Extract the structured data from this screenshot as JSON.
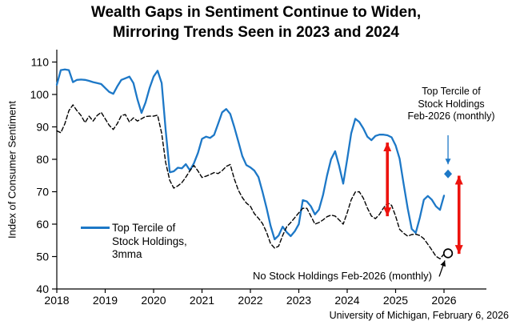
{
  "title": {
    "line1": "Wealth Gaps in Sentiment Continue to Widen,",
    "line2": "Mirroring Trends Seen in 2023 and 2024"
  },
  "y_axis": {
    "label": "Index of Consumer Sentiment",
    "ticks": [
      40,
      50,
      60,
      70,
      80,
      90,
      100,
      110
    ],
    "min": 40,
    "max": 110
  },
  "x_axis": {
    "ticks": [
      2018,
      2019,
      2020,
      2021,
      2022,
      2023,
      2024,
      2025,
      2026
    ]
  },
  "legend": {
    "lines": [
      "Top Tercile of",
      "Stock Holdings,",
      "3mma"
    ]
  },
  "annotations": {
    "top": {
      "lines": [
        "Top Tercile of",
        "Stock Holdings",
        "Feb-2026 (monthly)"
      ]
    },
    "bottom": {
      "text": "No Stock Holdings Feb-2026 (monthly)"
    }
  },
  "source": "University of Michigan, February 6, 2026",
  "colors": {
    "blue": "#1d78c7",
    "red": "#ed130e",
    "black": "#000000"
  },
  "chart_data": {
    "type": "line",
    "title": "Wealth Gaps in Sentiment Continue to Widen, Mirroring Trends Seen in 2023 and 2024",
    "ylabel": "Index of Consumer Sentiment",
    "ylim": [
      40,
      110
    ],
    "x_range_years": [
      2018,
      2026.9
    ],
    "frequency": "monthly",
    "x_monthly_start": "2018-01",
    "x_monthly_end": "2026-01",
    "grid": false,
    "series": [
      {
        "name": "Top Tercile of Stock Holdings, 3mma",
        "style": "solid",
        "color": "#1d78c7",
        "values": [
          103,
          107.5,
          107.7,
          107.5,
          103.8,
          104.5,
          104.6,
          104.5,
          104.2,
          103.8,
          103.5,
          103.2,
          102,
          100.8,
          100.2,
          102.5,
          104.5,
          105,
          105.5,
          103.5,
          98.5,
          94.3,
          97.5,
          102,
          105.5,
          107.3,
          103.5,
          89,
          76,
          76.3,
          77.4,
          77.2,
          78.5,
          76.6,
          78.8,
          82,
          86.3,
          87,
          86.6,
          87.5,
          91,
          94.5,
          95.5,
          94,
          90,
          85.5,
          81,
          78.2,
          77.5,
          76.5,
          74.5,
          70,
          65,
          59.5,
          55.3,
          56.5,
          59.2,
          57.5,
          56.3,
          57.8,
          60,
          67.4,
          67,
          65.5,
          63,
          64.5,
          69,
          75,
          80,
          82.5,
          78,
          72.5,
          80,
          88,
          92.5,
          91.5,
          89.5,
          87,
          85.9,
          87.2,
          87.6,
          87.6,
          87.4,
          86.8,
          84.3,
          80.2,
          72.3,
          64.9,
          58.5,
          57.3,
          62,
          67.5,
          68.7,
          67.5,
          65.5,
          64.4,
          68.8
        ]
      },
      {
        "name": "No Stock Holdings, 3mma",
        "style": "dashed",
        "color": "#000000",
        "values": [
          88.8,
          88.2,
          91,
          95,
          96.8,
          95,
          93.5,
          91.3,
          93.3,
          91.8,
          93.5,
          94.5,
          92.5,
          90.5,
          89.2,
          91,
          93.5,
          93.8,
          91.5,
          92.8,
          91.8,
          92.5,
          93.2,
          93.3,
          93.3,
          93.6,
          88,
          79,
          73.5,
          71.1,
          71.8,
          72.8,
          74.5,
          76.5,
          78.1,
          76.4,
          74.4,
          74.8,
          75.3,
          75.9,
          75.6,
          76.5,
          77.8,
          78.4,
          74,
          70.5,
          68.2,
          66.5,
          65.5,
          63.2,
          61.8,
          60.2,
          57.5,
          54,
          52.6,
          53.2,
          56.5,
          59.2,
          60.5,
          62,
          63.5,
          64.9,
          64.9,
          62.5,
          60,
          60.5,
          61.3,
          62.3,
          62.8,
          62.5,
          61.3,
          60,
          63.5,
          67.5,
          69.9,
          70,
          68,
          65,
          62.5,
          61.7,
          63,
          65,
          66.6,
          65.8,
          62.5,
          58.4,
          57.2,
          56.3,
          56.8,
          56.9,
          56.5,
          55.5,
          53.8,
          52,
          50.1,
          49.3,
          50.8
        ]
      }
    ],
    "point_markers": [
      {
        "name": "Top Tercile of Stock Holdings Feb-2026 (monthly)",
        "shape": "diamond",
        "color": "blue",
        "x": {
          "year": 2026,
          "month": 2
        },
        "value": 75.5
      },
      {
        "name": "No Stock Holdings Feb-2026 (monthly)",
        "shape": "open-circle",
        "color": "black",
        "x": {
          "year": 2026,
          "month": 2
        },
        "value": 51
      }
    ],
    "gap_arrows": [
      {
        "x_year": 2024.83,
        "from": 62.2,
        "to": 85.4
      },
      {
        "x_year": 2026.31,
        "from": 50.6,
        "to": 75.2
      }
    ],
    "legend_position": "center-left"
  }
}
